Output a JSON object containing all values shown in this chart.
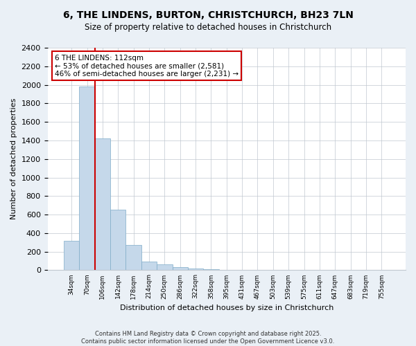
{
  "title_line1": "6, THE LINDENS, BURTON, CHRISTCHURCH, BH23 7LN",
  "title_line2": "Size of property relative to detached houses in Christchurch",
  "xlabel": "Distribution of detached houses by size in Christchurch",
  "ylabel": "Number of detached properties",
  "bins": [
    "34sqm",
    "70sqm",
    "106sqm",
    "142sqm",
    "178sqm",
    "214sqm",
    "250sqm",
    "286sqm",
    "322sqm",
    "358sqm",
    "395sqm",
    "431sqm",
    "467sqm",
    "503sqm",
    "539sqm",
    "575sqm",
    "611sqm",
    "647sqm",
    "683sqm",
    "719sqm",
    "755sqm"
  ],
  "values": [
    320,
    1980,
    1420,
    650,
    270,
    90,
    60,
    35,
    20,
    10,
    5,
    3,
    2,
    2,
    1,
    1,
    1,
    0,
    0,
    0,
    0
  ],
  "bar_color": "#c5d8ea",
  "bar_edge_color": "#7eabc8",
  "highlight_color": "#cc0000",
  "annotation_line1": "6 THE LINDENS: 112sqm",
  "annotation_line2": "← 53% of detached houses are smaller (2,581)",
  "annotation_line3": "46% of semi-detached houses are larger (2,231) →",
  "annotation_box_color": "#cc0000",
  "footer_line1": "Contains HM Land Registry data © Crown copyright and database right 2025.",
  "footer_line2": "Contains public sector information licensed under the Open Government Licence v3.0.",
  "ylim": [
    0,
    2400
  ],
  "yticks": [
    0,
    200,
    400,
    600,
    800,
    1000,
    1200,
    1400,
    1600,
    1800,
    2000,
    2200,
    2400
  ],
  "bg_color": "#eaf0f6",
  "plot_bg_color": "#ffffff"
}
